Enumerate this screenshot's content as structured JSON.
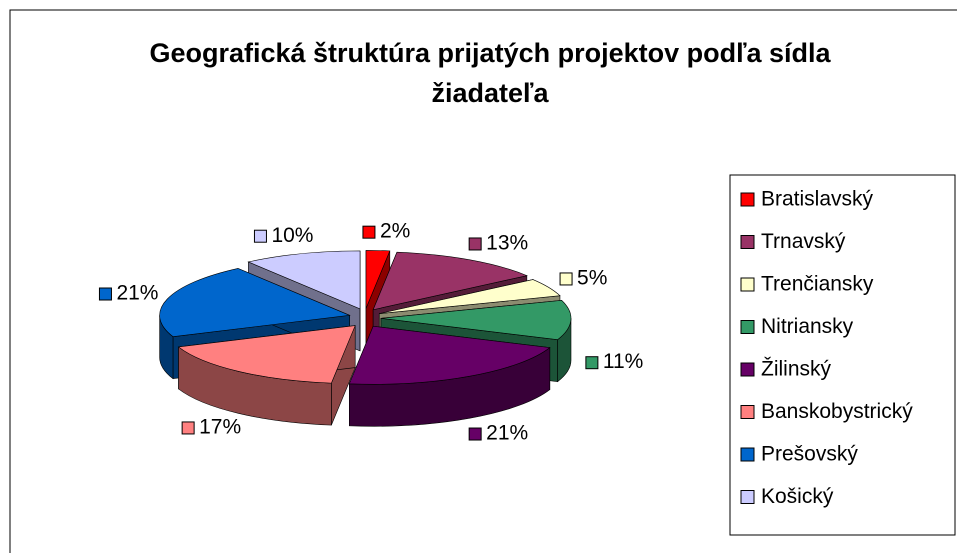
{
  "chart_data": {
    "type": "pie3d",
    "title": "Geografická štruktúra prijatých projektov podľa sídla žiadateľa",
    "categories": [
      "Bratislavský",
      "Trnavský",
      "Trenčiansky",
      "Nitriansky",
      "Žilinský",
      "Banskobystrický",
      "Prešovský",
      "Košický"
    ],
    "values": [
      2,
      13,
      5,
      11,
      21,
      17,
      21,
      10
    ],
    "value_labels": [
      "2%",
      "13%",
      "5%",
      "11%",
      "21%",
      "17%",
      "21%",
      "10%"
    ],
    "colors": [
      "#ff0000",
      "#993366",
      "#ffffcc",
      "#339966",
      "#660066",
      "#ff8080",
      "#0066cc",
      "#ccccff"
    ],
    "legend": "right"
  }
}
